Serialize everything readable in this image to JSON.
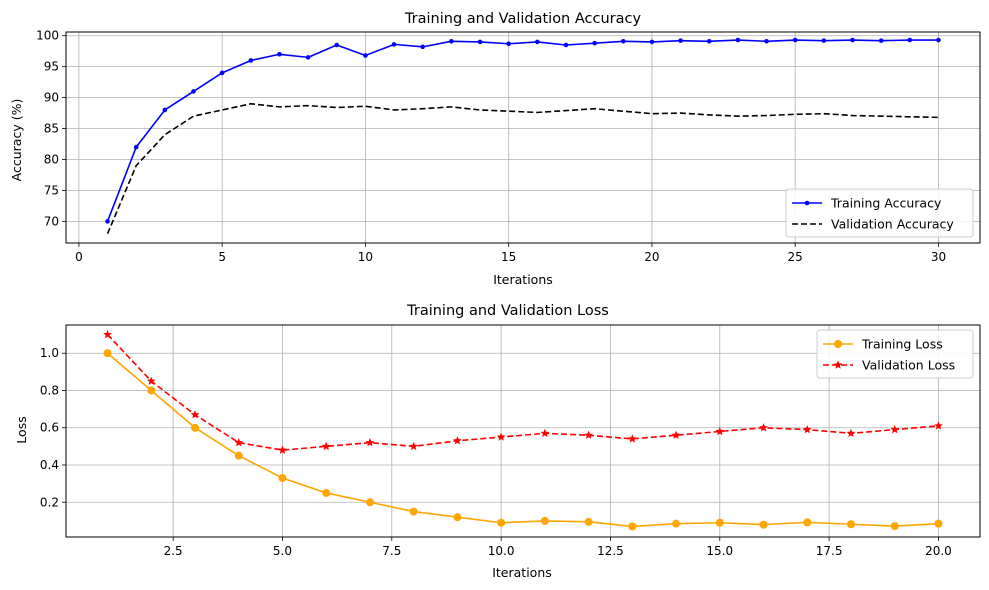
{
  "colors": {
    "train_acc": "#0000ff",
    "val_acc": "#000000",
    "train_loss": "#ffa500",
    "val_loss": "#ff0000",
    "grid": "#b0b0b0"
  },
  "chart_data": [
    {
      "type": "line",
      "title": "Training and Validation Accuracy",
      "xlabel": "Iterations",
      "ylabel": "Accuracy (%)",
      "xlim": [
        -0.45,
        31.45
      ],
      "ylim": [
        66.5,
        100.6
      ],
      "xticks": [
        0,
        5,
        10,
        15,
        20,
        25,
        30
      ],
      "yticks": [
        70,
        75,
        80,
        85,
        90,
        95,
        100
      ],
      "grid": true,
      "legend_position": "lower right",
      "x": [
        1,
        2,
        3,
        4,
        5,
        6,
        7,
        8,
        9,
        10,
        11,
        12,
        13,
        14,
        15,
        16,
        17,
        18,
        19,
        20,
        21,
        22,
        23,
        24,
        25,
        26,
        27,
        28,
        29,
        30
      ],
      "series": [
        {
          "name": "Training Accuracy",
          "style": "solid",
          "marker": "dot",
          "color": "#0000ff",
          "values": [
            70,
            82,
            88,
            91,
            94,
            96,
            97,
            96.5,
            98.5,
            96.8,
            98.6,
            98.2,
            99.1,
            99,
            98.7,
            99,
            98.5,
            98.8,
            99.1,
            99,
            99.2,
            99.1,
            99.3,
            99.1,
            99.3,
            99.2,
            99.3,
            99.2,
            99.3,
            99.3
          ]
        },
        {
          "name": "Validation Accuracy",
          "style": "dashed",
          "marker": "none",
          "color": "#000000",
          "values": [
            68,
            79,
            84,
            87,
            88,
            89,
            88.5,
            88.7,
            88.4,
            88.6,
            88,
            88.2,
            88.5,
            88,
            87.8,
            87.6,
            87.9,
            88.2,
            87.8,
            87.4,
            87.5,
            87.2,
            87,
            87.1,
            87.3,
            87.4,
            87.1,
            87,
            86.9,
            86.8
          ]
        }
      ]
    },
    {
      "type": "line",
      "title": "Training and Validation Loss",
      "xlabel": "Iterations",
      "ylabel": "Loss",
      "xlim": [
        0.05,
        20.95
      ],
      "ylim": [
        0.0135,
        1.1515
      ],
      "xticks": [
        2.5,
        5.0,
        7.5,
        10.0,
        12.5,
        15.0,
        17.5,
        20.0
      ],
      "xtick_labels": [
        "2.5",
        "5.0",
        "7.5",
        "10.0",
        "12.5",
        "15.0",
        "17.5",
        "20.0"
      ],
      "yticks": [
        0.2,
        0.4,
        0.6,
        0.8,
        1.0
      ],
      "ytick_labels": [
        "0.2",
        "0.4",
        "0.6",
        "0.8",
        "1.0"
      ],
      "grid": true,
      "legend_position": "upper right",
      "x": [
        1,
        2,
        3,
        4,
        5,
        6,
        7,
        8,
        9,
        10,
        11,
        12,
        13,
        14,
        15,
        16,
        17,
        18,
        19,
        20
      ],
      "series": [
        {
          "name": "Training Loss",
          "style": "solid",
          "marker": "circle",
          "color": "#ffa500",
          "values": [
            1.0,
            0.8,
            0.6,
            0.45,
            0.33,
            0.25,
            0.2,
            0.15,
            0.12,
            0.09,
            0.1,
            0.095,
            0.07,
            0.085,
            0.09,
            0.08,
            0.092,
            0.082,
            0.072,
            0.085
          ]
        },
        {
          "name": "Validation Loss",
          "style": "dashed",
          "marker": "star",
          "color": "#ff0000",
          "values": [
            1.1,
            0.85,
            0.67,
            0.52,
            0.48,
            0.5,
            0.52,
            0.5,
            0.53,
            0.55,
            0.57,
            0.56,
            0.54,
            0.56,
            0.58,
            0.6,
            0.59,
            0.57,
            0.59,
            0.61
          ]
        }
      ]
    }
  ]
}
